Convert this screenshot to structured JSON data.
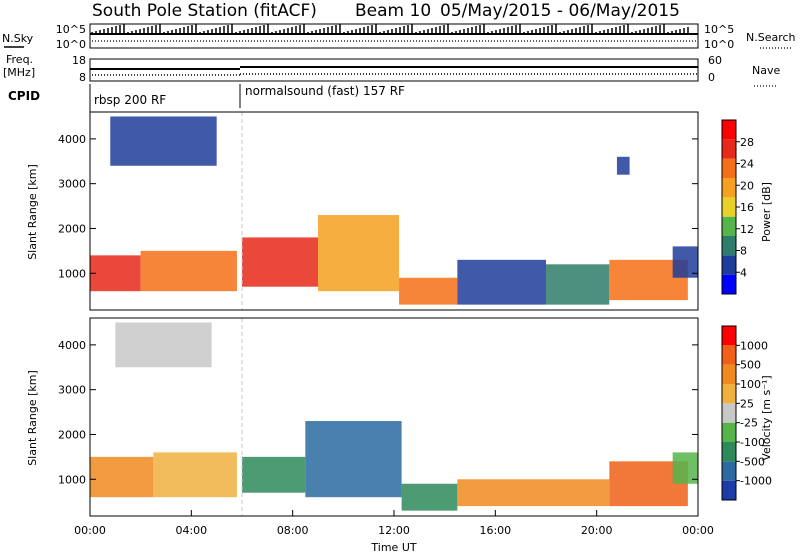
{
  "title": {
    "station": "South Pole Station (fitACF)",
    "beam": "Beam 10",
    "dates": "05/May/2015 - 06/May/2015"
  },
  "strip": {
    "nsky_label": "N.Sky",
    "nsky_ticks": [
      "10^5",
      "10^0"
    ],
    "nsearch_label": "N.Search",
    "nsearch_ticks": [
      "10^5",
      "10^0"
    ],
    "freq_label_1": "Freq.",
    "freq_label_2": "[MHz]",
    "freq_ticks": [
      "18",
      "8"
    ],
    "nave_label": "Nave",
    "nave_ticks": [
      "60",
      "0"
    ],
    "cpid_label": "CPID",
    "cpid_segments": [
      {
        "label": "rbsp 200 RF",
        "start_h": 0
      },
      {
        "label": "normalsound (fast) 157 RF",
        "start_h": 6
      }
    ]
  },
  "chart_data": [
    {
      "type": "heatmap",
      "name": "power",
      "ylabel": "Slant Range [km]",
      "ylim": [
        180,
        4600
      ],
      "yticks": [
        "1000",
        "2000",
        "3000",
        "4000"
      ],
      "xlim_hours": [
        0,
        24
      ],
      "colorbar": {
        "label": "Power [dB]",
        "ticks": [
          "28",
          "24",
          "20",
          "16",
          "12",
          "8",
          "4"
        ],
        "colors": [
          "#0000ff",
          "#1e3c9a",
          "#2e7c6a",
          "#55b44a",
          "#e6d22a",
          "#f5a020",
          "#f47018",
          "#e8281a",
          "#ff0000"
        ]
      },
      "bands": [
        {
          "from_h": 0.0,
          "to_h": 2.0,
          "low_km": 600,
          "high_km": 1400,
          "color": "#e8281a"
        },
        {
          "from_h": 2.0,
          "to_h": 5.8,
          "low_km": 600,
          "high_km": 1500,
          "color": "#f47018"
        },
        {
          "from_h": 6.0,
          "to_h": 9.0,
          "low_km": 700,
          "high_km": 1800,
          "color": "#e8281a"
        },
        {
          "from_h": 9.0,
          "to_h": 12.2,
          "low_km": 600,
          "high_km": 2300,
          "color": "#f5a020"
        },
        {
          "from_h": 12.2,
          "to_h": 14.5,
          "low_km": 300,
          "high_km": 900,
          "color": "#f47018"
        },
        {
          "from_h": 14.5,
          "to_h": 18.0,
          "low_km": 300,
          "high_km": 1300,
          "color": "#1e3c9a"
        },
        {
          "from_h": 18.0,
          "to_h": 20.5,
          "low_km": 300,
          "high_km": 1200,
          "color": "#2e7c6a"
        },
        {
          "from_h": 20.5,
          "to_h": 23.6,
          "low_km": 400,
          "high_km": 1300,
          "color": "#f47018"
        },
        {
          "from_h": 23.0,
          "to_h": 24.0,
          "low_km": 900,
          "high_km": 1600,
          "color": "#1e3c9a"
        },
        {
          "from_h": 0.8,
          "to_h": 5.0,
          "low_km": 3400,
          "high_km": 4500,
          "color": "#1e3c9a"
        },
        {
          "from_h": 20.8,
          "to_h": 21.3,
          "low_km": 3200,
          "high_km": 3600,
          "color": "#1e3c9a"
        }
      ]
    },
    {
      "type": "heatmap",
      "name": "velocity",
      "ylabel": "Slant Range [km]",
      "ylim": [
        180,
        4600
      ],
      "yticks": [
        "1000",
        "2000",
        "3000",
        "4000"
      ],
      "xlim_hours": [
        0,
        24
      ],
      "xticks": [
        "00:00",
        "04:00",
        "08:00",
        "12:00",
        "16:00",
        "20:00",
        "00:00"
      ],
      "xlabel": "Time UT",
      "colorbar": {
        "label": "Velocity [m s⁻¹]",
        "ticks": [
          "1000",
          "500",
          "100",
          "25",
          "-25",
          "-100",
          "-500",
          "-1000"
        ],
        "colors": [
          "#1e3ca8",
          "#2a6aa0",
          "#2e8a5a",
          "#55b44a",
          "#c8c8c8",
          "#f0b040",
          "#f08a20",
          "#f06018",
          "#ff0000"
        ]
      },
      "bands": [
        {
          "from_h": 0.0,
          "to_h": 2.5,
          "low_km": 600,
          "high_km": 1500,
          "color": "#f08a20"
        },
        {
          "from_h": 2.5,
          "to_h": 5.8,
          "low_km": 600,
          "high_km": 1600,
          "color": "#f0b040"
        },
        {
          "from_h": 6.0,
          "to_h": 8.5,
          "low_km": 700,
          "high_km": 1500,
          "color": "#2e8a5a"
        },
        {
          "from_h": 8.5,
          "to_h": 12.3,
          "low_km": 600,
          "high_km": 2300,
          "color": "#2a6aa0"
        },
        {
          "from_h": 12.3,
          "to_h": 14.5,
          "low_km": 300,
          "high_km": 900,
          "color": "#2e8a5a"
        },
        {
          "from_h": 14.5,
          "to_h": 18.0,
          "low_km": 400,
          "high_km": 1000,
          "color": "#f08a20"
        },
        {
          "from_h": 18.0,
          "to_h": 20.5,
          "low_km": 400,
          "high_km": 1000,
          "color": "#f08a20"
        },
        {
          "from_h": 20.5,
          "to_h": 23.6,
          "low_km": 400,
          "high_km": 1400,
          "color": "#f06018"
        },
        {
          "from_h": 23.0,
          "to_h": 24.0,
          "low_km": 900,
          "high_km": 1600,
          "color": "#55b44a"
        },
        {
          "from_h": 1.0,
          "to_h": 4.8,
          "low_km": 3500,
          "high_km": 4500,
          "color": "#c8c8c8"
        }
      ]
    }
  ]
}
